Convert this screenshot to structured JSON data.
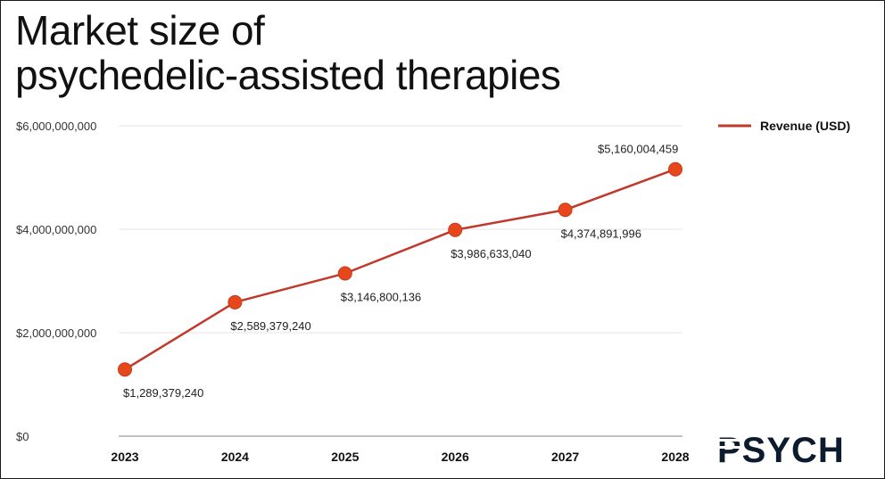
{
  "title_lines": [
    "Market size of",
    "psychedelic-assisted therapies"
  ],
  "logo_text": "PSYCH",
  "chart_data": {
    "type": "line",
    "title": "Market size of psychedelic-assisted therapies",
    "categories": [
      "2023",
      "2024",
      "2025",
      "2026",
      "2027",
      "2028"
    ],
    "series": [
      {
        "name": "Revenue (USD)",
        "color": "#c0392b",
        "marker_color": "#e8471c",
        "values": [
          1289379240,
          2589379240,
          3146800136,
          3986633040,
          4374891996,
          5160004459
        ],
        "labels": [
          "$1,289,379,240",
          "$2,589,379,240",
          "$3,146,800,136",
          "$3,986,633,040",
          "$4,374,891,996",
          "$5,160,004,459"
        ],
        "label_side": [
          "below",
          "below",
          "below",
          "below",
          "below",
          "above"
        ]
      }
    ],
    "ylim": [
      0,
      6000000000
    ],
    "yticks": [
      0,
      2000000000,
      4000000000,
      6000000000
    ],
    "ytick_labels": [
      "$0",
      "$2,000,000,000",
      "$4,000,000,000",
      "$6,000,000,000"
    ],
    "grid": true,
    "legend_position": "top-right",
    "xlabel": "",
    "ylabel": ""
  }
}
